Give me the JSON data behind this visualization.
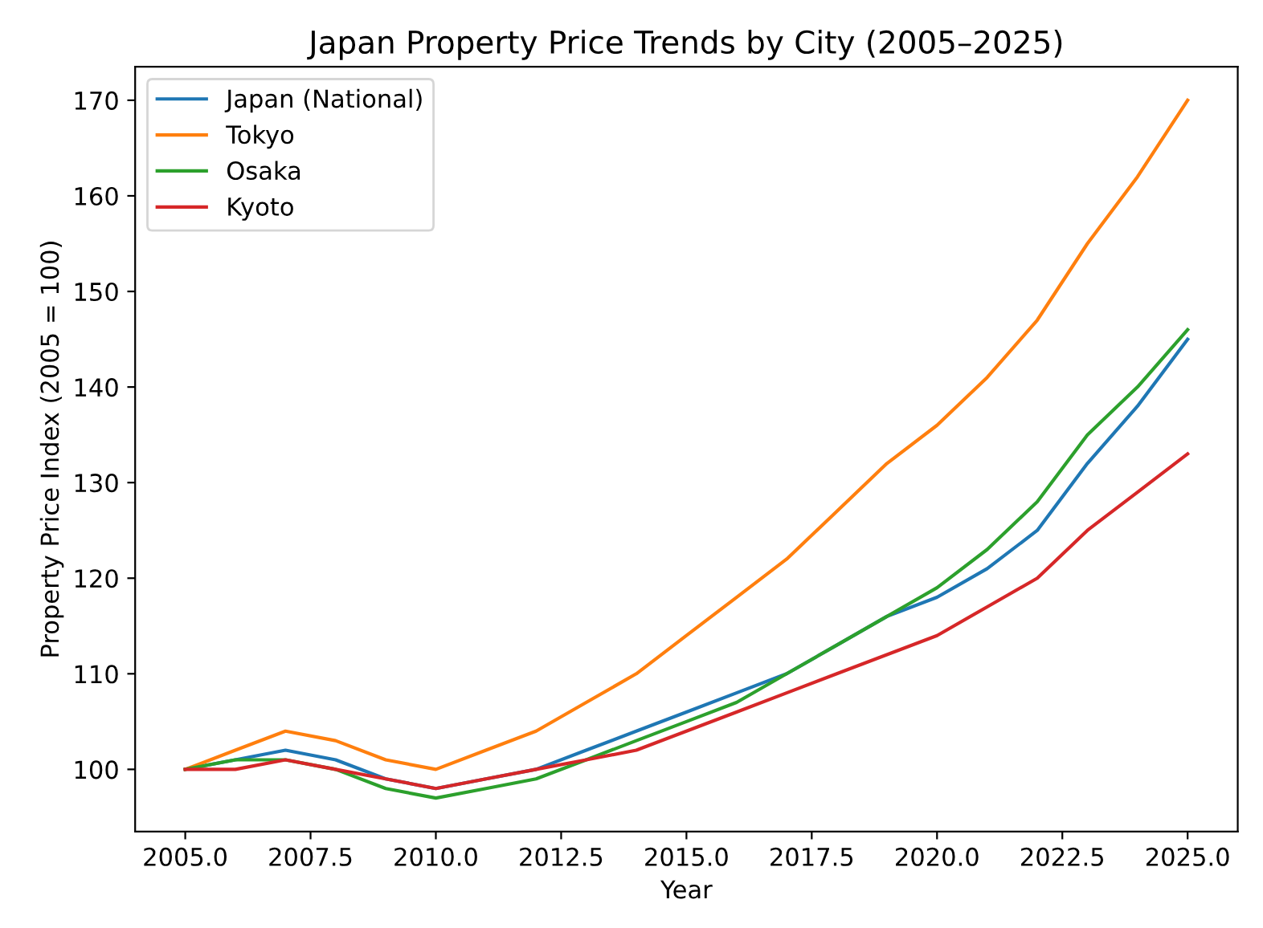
{
  "chart_data": {
    "type": "line",
    "title": "Japan Property Price Trends by City (2005–2025)",
    "xlabel": "Year",
    "ylabel": "Property Price Index (2005 = 100)",
    "x": [
      2005,
      2006,
      2007,
      2008,
      2009,
      2010,
      2011,
      2012,
      2013,
      2014,
      2015,
      2016,
      2017,
      2018,
      2019,
      2020,
      2021,
      2022,
      2023,
      2024,
      2025
    ],
    "series": [
      {
        "name": "Japan (National)",
        "color": "#1f77b4",
        "values": [
          100,
          101,
          102,
          101,
          99,
          98,
          99,
          100,
          102,
          104,
          106,
          108,
          110,
          113,
          116,
          118,
          121,
          125,
          132,
          138,
          145
        ]
      },
      {
        "name": "Tokyo",
        "color": "#ff7f0e",
        "values": [
          100,
          102,
          104,
          103,
          101,
          100,
          102,
          104,
          107,
          110,
          114,
          118,
          122,
          127,
          132,
          136,
          141,
          147,
          155,
          162,
          170
        ]
      },
      {
        "name": "Osaka",
        "color": "#2ca02c",
        "values": [
          100,
          101,
          101,
          100,
          98,
          97,
          98,
          99,
          101,
          103,
          105,
          107,
          110,
          113,
          116,
          119,
          123,
          128,
          135,
          140,
          146
        ]
      },
      {
        "name": "Kyoto",
        "color": "#d62728",
        "values": [
          100,
          100,
          101,
          100,
          99,
          98,
          99,
          100,
          101,
          102,
          104,
          106,
          108,
          110,
          112,
          114,
          117,
          120,
          125,
          129,
          133
        ]
      }
    ],
    "xlim": [
      2004,
      2026
    ],
    "ylim": [
      93.5,
      173.5
    ],
    "xticks": [
      {
        "value": 2005,
        "label": "2005.0"
      },
      {
        "value": 2007.5,
        "label": "2007.5"
      },
      {
        "value": 2010,
        "label": "2010.0"
      },
      {
        "value": 2012.5,
        "label": "2012.5"
      },
      {
        "value": 2015,
        "label": "2015.0"
      },
      {
        "value": 2017.5,
        "label": "2017.5"
      },
      {
        "value": 2020,
        "label": "2020.0"
      },
      {
        "value": 2022.5,
        "label": "2022.5"
      },
      {
        "value": 2025,
        "label": "2025.0"
      }
    ],
    "yticks": [
      100,
      110,
      120,
      130,
      140,
      150,
      160,
      170
    ],
    "legend": "top left",
    "grid": false,
    "marker": "none",
    "line_style": "solid"
  }
}
